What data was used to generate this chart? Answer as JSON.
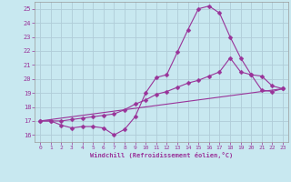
{
  "bg_color": "#c8e8f0",
  "grid_color": "#b0ccd8",
  "line_color": "#993399",
  "marker_color": "#993399",
  "xlabel": "Windchill (Refroidissement éolien,°C)",
  "xlabel_color": "#993399",
  "tick_color": "#993399",
  "ylim": [
    15.5,
    25.5
  ],
  "xlim": [
    -0.5,
    23.5
  ],
  "yticks": [
    16,
    17,
    18,
    19,
    20,
    21,
    22,
    23,
    24,
    25
  ],
  "xticks": [
    0,
    1,
    2,
    3,
    4,
    5,
    6,
    7,
    8,
    9,
    10,
    11,
    12,
    13,
    14,
    15,
    16,
    17,
    18,
    19,
    20,
    21,
    22,
    23
  ],
  "line1_x": [
    0,
    1,
    2,
    3,
    4,
    5,
    6,
    7,
    8,
    9,
    10,
    11,
    12,
    13,
    14,
    15,
    16,
    17,
    18,
    19,
    20,
    21,
    22,
    23
  ],
  "line1_y": [
    17.0,
    17.0,
    16.7,
    16.5,
    16.6,
    16.6,
    16.5,
    16.0,
    16.4,
    17.3,
    19.0,
    20.1,
    20.3,
    21.9,
    23.5,
    25.0,
    25.2,
    24.7,
    23.0,
    21.5,
    20.3,
    19.2,
    19.1,
    19.3
  ],
  "line2_x": [
    0,
    1,
    2,
    3,
    4,
    5,
    6,
    7,
    8,
    9,
    10,
    11,
    12,
    13,
    14,
    15,
    16,
    17,
    18,
    19,
    20,
    21,
    22,
    23
  ],
  "line2_y": [
    17.0,
    17.0,
    17.0,
    17.1,
    17.2,
    17.3,
    17.4,
    17.5,
    17.8,
    18.2,
    18.5,
    18.9,
    19.1,
    19.4,
    19.7,
    19.9,
    20.2,
    20.5,
    21.5,
    20.5,
    20.3,
    20.2,
    19.5,
    19.3
  ],
  "line3_x": [
    0,
    23
  ],
  "line3_y": [
    17.0,
    19.3
  ]
}
